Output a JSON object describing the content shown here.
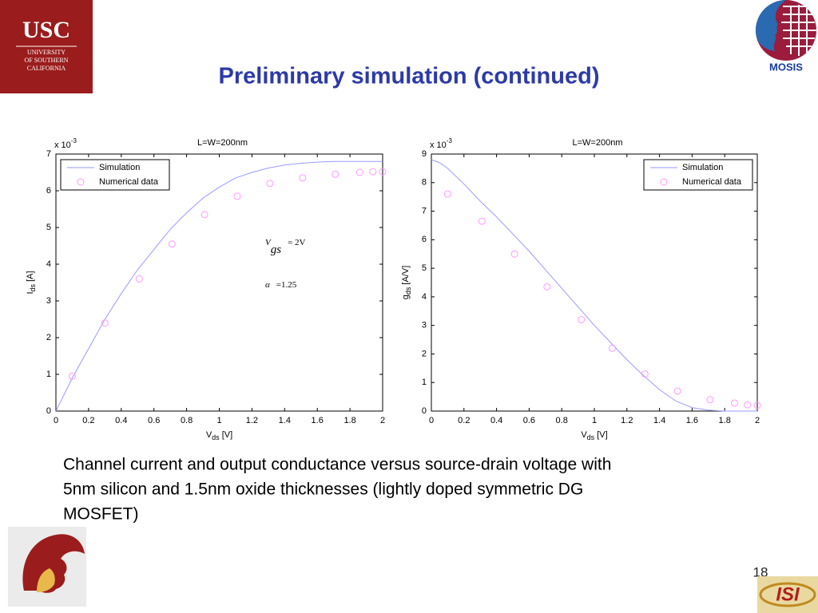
{
  "title": "Preliminary simulation (continued)",
  "logos": {
    "usc": [
      "USC",
      "UNIVERSITY",
      "OF SOUTHERN",
      "CALIFORNIA"
    ],
    "mosis": "MOSIS",
    "isi": "ISI"
  },
  "caption": [
    "Channel current and output conductance versus source-drain voltage with",
    "5nm silicon and 1.5nm oxide thicknesses (lightly doped symmetric DG",
    "MOSFET)"
  ],
  "page_number": "18",
  "chart_data": [
    {
      "type": "line",
      "title": "L=W=200nm",
      "xlabel": {
        "text": "V",
        "sub": "ds",
        "unit": " [V]"
      },
      "ylabel": {
        "text": "I",
        "sub": "ds",
        "unit": " [A]"
      },
      "yscale": {
        "base": "x 10",
        "exp": "-3"
      },
      "xlim": [
        0,
        2
      ],
      "xticks": [
        0,
        0.2,
        0.4,
        0.6,
        0.8,
        1,
        1.2,
        1.4,
        1.6,
        1.8,
        2
      ],
      "ylim": [
        0,
        7
      ],
      "yticks": [
        0,
        1,
        2,
        3,
        4,
        5,
        6,
        7
      ],
      "legend": "upper left",
      "annotations": [
        {
          "lhs": "V",
          "sub": "gs",
          "rhs": "= 2V"
        },
        {
          "lhs": "α",
          "rhs": "=1.25"
        }
      ],
      "series": [
        {
          "name": "Simulation",
          "color": "#9a9aff",
          "style": "line",
          "x": [
            0,
            0.1,
            0.2,
            0.3,
            0.4,
            0.5,
            0.6,
            0.7,
            0.8,
            0.9,
            1.0,
            1.1,
            1.2,
            1.3,
            1.4,
            1.5,
            1.6,
            1.7,
            1.8,
            1.9,
            2.0
          ],
          "values": [
            0,
            0.9,
            1.7,
            2.5,
            3.2,
            3.85,
            4.4,
            4.95,
            5.4,
            5.8,
            6.1,
            6.35,
            6.5,
            6.62,
            6.7,
            6.75,
            6.78,
            6.8,
            6.8,
            6.8,
            6.8
          ]
        },
        {
          "name": "Numerical data",
          "color": "#ff99ff",
          "style": "markers",
          "x": [
            0.1,
            0.3,
            0.51,
            0.71,
            0.91,
            1.11,
            1.31,
            1.51,
            1.71,
            1.86,
            1.94,
            2.0
          ],
          "values": [
            0.95,
            2.4,
            3.6,
            4.55,
            5.35,
            5.85,
            6.2,
            6.35,
            6.45,
            6.5,
            6.52,
            6.52
          ]
        }
      ]
    },
    {
      "type": "line",
      "title": "L=W=200nm",
      "xlabel": {
        "text": "V",
        "sub": "ds",
        "unit": " [V]"
      },
      "ylabel": {
        "text": "g",
        "sub": "ds",
        "unit": " [A/V]"
      },
      "yscale": {
        "base": "x 10",
        "exp": "-3"
      },
      "xlim": [
        0,
        2
      ],
      "xticks": [
        0,
        0.2,
        0.4,
        0.6,
        0.8,
        1,
        1.2,
        1.4,
        1.6,
        1.8,
        2
      ],
      "ylim": [
        0,
        9
      ],
      "yticks": [
        0,
        1,
        2,
        3,
        4,
        5,
        6,
        7,
        8,
        9
      ],
      "legend": "upper right",
      "series": [
        {
          "name": "Simulation",
          "color": "#9a9aff",
          "style": "line",
          "x": [
            0,
            0.05,
            0.1,
            0.2,
            0.3,
            0.4,
            0.5,
            0.6,
            0.7,
            0.8,
            0.9,
            1.0,
            1.1,
            1.2,
            1.3,
            1.4,
            1.5,
            1.6,
            1.7,
            1.8,
            1.9,
            2.0
          ],
          "values": [
            8.8,
            8.7,
            8.5,
            7.95,
            7.35,
            6.8,
            6.2,
            5.6,
            4.95,
            4.3,
            3.65,
            3.0,
            2.4,
            1.8,
            1.25,
            0.75,
            0.35,
            0.12,
            0.03,
            0.0,
            0.0,
            0.0
          ]
        },
        {
          "name": "Numerical data",
          "color": "#ff99ff",
          "style": "markers",
          "x": [
            0.1,
            0.31,
            0.51,
            0.71,
            0.92,
            1.11,
            1.31,
            1.51,
            1.71,
            1.86,
            1.94,
            2.0
          ],
          "values": [
            7.6,
            6.65,
            5.5,
            4.35,
            3.2,
            2.2,
            1.3,
            0.7,
            0.4,
            0.28,
            0.22,
            0.2
          ]
        }
      ]
    }
  ]
}
